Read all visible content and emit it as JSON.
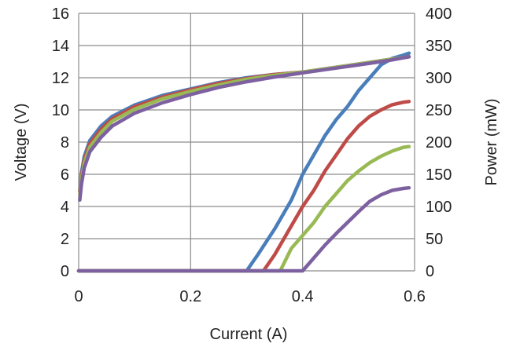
{
  "chart_data": {
    "type": "line",
    "title": "",
    "xlabel": "Current (A)",
    "ylabel": "Voltage (V)",
    "y2label": "Power (mW)",
    "xlim": [
      0,
      0.6
    ],
    "ylim": [
      0,
      16
    ],
    "y2lim": [
      0,
      400
    ],
    "xticks": [
      "0",
      "0.2",
      "0.4",
      "0.6"
    ],
    "yticks": [
      "0",
      "2",
      "4",
      "6",
      "8",
      "10",
      "12",
      "14",
      "16"
    ],
    "y2ticks": [
      "0",
      "50",
      "100",
      "150",
      "200",
      "250",
      "300",
      "350",
      "400"
    ],
    "grid": true,
    "legend": "none",
    "voltage_series": [
      {
        "color": "#4a7ebb",
        "axis": "left",
        "x": [
          0.002,
          0.005,
          0.01,
          0.02,
          0.04,
          0.06,
          0.1,
          0.15,
          0.2,
          0.25,
          0.3,
          0.35,
          0.4,
          0.45,
          0.5,
          0.55,
          0.59
        ],
        "y": [
          5.0,
          6.1,
          7.1,
          8.1,
          9.0,
          9.6,
          10.3,
          10.9,
          11.3,
          11.7,
          12.0,
          12.2,
          12.35,
          12.6,
          12.85,
          13.1,
          13.3
        ]
      },
      {
        "color": "#be4b48",
        "axis": "left",
        "x": [
          0.002,
          0.005,
          0.01,
          0.02,
          0.04,
          0.06,
          0.1,
          0.15,
          0.2,
          0.25,
          0.3,
          0.35,
          0.4,
          0.45,
          0.5,
          0.55,
          0.59
        ],
        "y": [
          4.9,
          5.9,
          6.9,
          7.9,
          8.8,
          9.45,
          10.2,
          10.8,
          11.25,
          11.65,
          11.95,
          12.2,
          12.35,
          12.6,
          12.85,
          13.1,
          13.3
        ]
      },
      {
        "color": "#98b954",
        "axis": "left",
        "x": [
          0.002,
          0.005,
          0.01,
          0.02,
          0.04,
          0.06,
          0.1,
          0.15,
          0.2,
          0.25,
          0.3,
          0.35,
          0.4,
          0.45,
          0.5,
          0.55,
          0.59
        ],
        "y": [
          4.7,
          5.7,
          6.7,
          7.7,
          8.6,
          9.3,
          10.05,
          10.7,
          11.15,
          11.55,
          11.9,
          12.15,
          12.35,
          12.6,
          12.85,
          13.1,
          13.3
        ]
      },
      {
        "color": "#7d60a0",
        "axis": "left",
        "x": [
          0.002,
          0.005,
          0.01,
          0.02,
          0.04,
          0.06,
          0.1,
          0.15,
          0.2,
          0.25,
          0.3,
          0.35,
          0.4,
          0.45,
          0.5,
          0.55,
          0.59
        ],
        "y": [
          4.4,
          5.4,
          6.4,
          7.4,
          8.3,
          9.0,
          9.8,
          10.45,
          10.95,
          11.4,
          11.75,
          12.05,
          12.3,
          12.55,
          12.8,
          13.05,
          13.3
        ]
      }
    ],
    "power_series": [
      {
        "color": "#4a7ebb",
        "axis": "right",
        "x": [
          0.0,
          0.3,
          0.32,
          0.35,
          0.38,
          0.4,
          0.42,
          0.44,
          0.46,
          0.48,
          0.5,
          0.52,
          0.54,
          0.56,
          0.58,
          0.59
        ],
        "y": [
          0,
          0,
          25,
          65,
          110,
          150,
          180,
          210,
          235,
          255,
          280,
          300,
          320,
          330,
          335,
          338
        ]
      },
      {
        "color": "#be4b48",
        "axis": "right",
        "x": [
          0.0,
          0.33,
          0.35,
          0.38,
          0.4,
          0.42,
          0.44,
          0.46,
          0.48,
          0.5,
          0.52,
          0.54,
          0.56,
          0.58,
          0.59
        ],
        "y": [
          0,
          0,
          25,
          70,
          100,
          125,
          155,
          180,
          205,
          225,
          240,
          250,
          258,
          262,
          263
        ]
      },
      {
        "color": "#98b954",
        "axis": "right",
        "x": [
          0.0,
          0.36,
          0.38,
          0.4,
          0.42,
          0.44,
          0.46,
          0.48,
          0.5,
          0.52,
          0.54,
          0.56,
          0.58,
          0.59
        ],
        "y": [
          0,
          0,
          35,
          55,
          75,
          100,
          120,
          140,
          155,
          168,
          178,
          186,
          192,
          193
        ]
      },
      {
        "color": "#7d60a0",
        "axis": "right",
        "x": [
          0.0,
          0.4,
          0.42,
          0.44,
          0.46,
          0.48,
          0.5,
          0.52,
          0.54,
          0.56,
          0.58,
          0.59
        ],
        "y": [
          0,
          0,
          20,
          40,
          58,
          75,
          92,
          108,
          118,
          125,
          128,
          129
        ]
      }
    ]
  }
}
